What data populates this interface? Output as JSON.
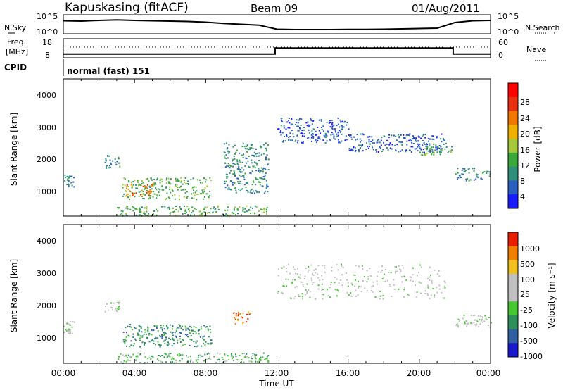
{
  "header": {
    "station": "Kapuskasing (fitACF)",
    "beam": "Beam 09",
    "date": "01/Aug/2011"
  },
  "top_panel": {
    "left_label": "N.Sky",
    "left_ticks": [
      "10^5",
      "10^0"
    ],
    "right_label": "N.Search",
    "right_ticks": [
      "10^5",
      "10^0"
    ]
  },
  "freq_panel": {
    "left_label_line1": "Freq.",
    "left_label_line2": "[MHz]",
    "left_ticks": [
      "18",
      "8"
    ],
    "right_label": "Nave",
    "right_ticks": [
      "60",
      "0"
    ]
  },
  "cpid": {
    "label": "CPID",
    "mode_text": "normal (fast) 151"
  },
  "x_axis": {
    "label": "Time UT",
    "ticks": [
      "00:00",
      "04:00",
      "08:00",
      "12:00",
      "16:00",
      "20:00",
      "00:00"
    ]
  },
  "power_panel": {
    "ylabel": "Slant Range [km]",
    "yticks": [
      "4000",
      "3000",
      "2000",
      "1000"
    ],
    "colorbar_label": "Power [dB]",
    "colorbar_ticks": [
      "28",
      "24",
      "20",
      "16",
      "12",
      "8",
      "4"
    ]
  },
  "velocity_panel": {
    "ylabel": "Slant Range [km]",
    "yticks": [
      "4000",
      "3000",
      "2000",
      "1000"
    ],
    "colorbar_label": "Velocity [m s⁻¹]",
    "colorbar_ticks": [
      "1000",
      "500",
      "100",
      "25",
      "-25",
      "-100",
      "-500",
      "-1000"
    ]
  },
  "colors": {
    "power_scale": [
      "#1a1aff",
      "#2a5fc0",
      "#2f8f7a",
      "#3aa83a",
      "#a7c83a",
      "#f0b000",
      "#f07800",
      "#e83010",
      "#ff0000"
    ],
    "velocity_scale": [
      "#1a1acc",
      "#3060a0",
      "#2f8f5a",
      "#46c832",
      "#c0c0c0",
      "#c0c0c0",
      "#f0c020",
      "#f08000",
      "#e82000"
    ]
  },
  "chart_data": [
    {
      "type": "line",
      "title": "N.Sky / N.Search",
      "x_unit": "hours UT",
      "xlim": [
        0,
        24
      ],
      "series": [
        {
          "name": "N.Sky",
          "x": [
            0,
            1,
            2,
            3,
            4,
            5,
            6,
            7,
            8,
            9,
            10,
            11,
            12,
            13,
            14,
            15,
            16,
            17,
            18,
            19,
            20,
            21,
            22,
            23,
            24
          ],
          "y": [
            70,
            68,
            72,
            75,
            72,
            70,
            68,
            66,
            62,
            55,
            50,
            45,
            22,
            20,
            20,
            20,
            21,
            21,
            22,
            24,
            26,
            28,
            60,
            70,
            72
          ]
        }
      ]
    },
    {
      "type": "line",
      "title": "Frequency",
      "x_unit": "hours UT",
      "xlim": [
        0,
        24
      ],
      "series": [
        {
          "name": "Freq",
          "x": [
            0,
            11.9,
            11.9,
            21.9,
            21.9,
            24
          ],
          "y": [
            10.5,
            10.5,
            15.5,
            15.5,
            10.5,
            10.5
          ]
        }
      ]
    },
    {
      "type": "heatmap",
      "title": "Power [dB]",
      "x_unit": "hours UT",
      "xlim": [
        0,
        24
      ],
      "ylim": [
        180,
        4500
      ],
      "regions": [
        {
          "t0": 0.0,
          "t1": 0.6,
          "r0": 1100,
          "r1": 1500,
          "level": 2
        },
        {
          "t0": 2.3,
          "t1": 3.2,
          "r0": 1700,
          "r1": 2100,
          "level": 2
        },
        {
          "t0": 3.3,
          "t1": 8.3,
          "r0": 700,
          "r1": 1400,
          "level": 3
        },
        {
          "t0": 3.5,
          "t1": 5.0,
          "r0": 800,
          "r1": 1200,
          "level": 6
        },
        {
          "t0": 3.0,
          "t1": 11.5,
          "r0": 180,
          "r1": 500,
          "level": 3
        },
        {
          "t0": 9.0,
          "t1": 11.5,
          "r0": 900,
          "r1": 2500,
          "level": 2
        },
        {
          "t0": 12.0,
          "t1": 16.0,
          "r0": 2500,
          "r1": 3300,
          "level": 1
        },
        {
          "t0": 16.0,
          "t1": 21.5,
          "r0": 2200,
          "r1": 2800,
          "level": 1
        },
        {
          "t0": 20.0,
          "t1": 21.8,
          "r0": 2100,
          "r1": 2500,
          "level": 3
        },
        {
          "t0": 22.0,
          "t1": 24.0,
          "r0": 1300,
          "r1": 1700,
          "level": 2
        }
      ]
    },
    {
      "type": "heatmap",
      "title": "Velocity [m s-1]",
      "x_unit": "hours UT",
      "xlim": [
        0,
        24
      ],
      "ylim": [
        180,
        4500
      ],
      "regions": [
        {
          "t0": 0.0,
          "t1": 0.6,
          "r0": 1100,
          "r1": 1500,
          "level": 4
        },
        {
          "t0": 2.3,
          "t1": 3.2,
          "r0": 1800,
          "r1": 2100,
          "level": 4
        },
        {
          "t0": 3.3,
          "t1": 8.3,
          "r0": 700,
          "r1": 1400,
          "level": 2
        },
        {
          "t0": 3.0,
          "t1": 11.5,
          "r0": 180,
          "r1": 500,
          "level": 3
        },
        {
          "t0": 9.5,
          "t1": 10.5,
          "r0": 1400,
          "r1": 1800,
          "level": 7
        },
        {
          "t0": 12.0,
          "t1": 21.5,
          "r0": 2200,
          "r1": 3300,
          "level": 4
        },
        {
          "t0": 22.0,
          "t1": 24.0,
          "r0": 1300,
          "r1": 1700,
          "level": 4
        }
      ]
    }
  ]
}
